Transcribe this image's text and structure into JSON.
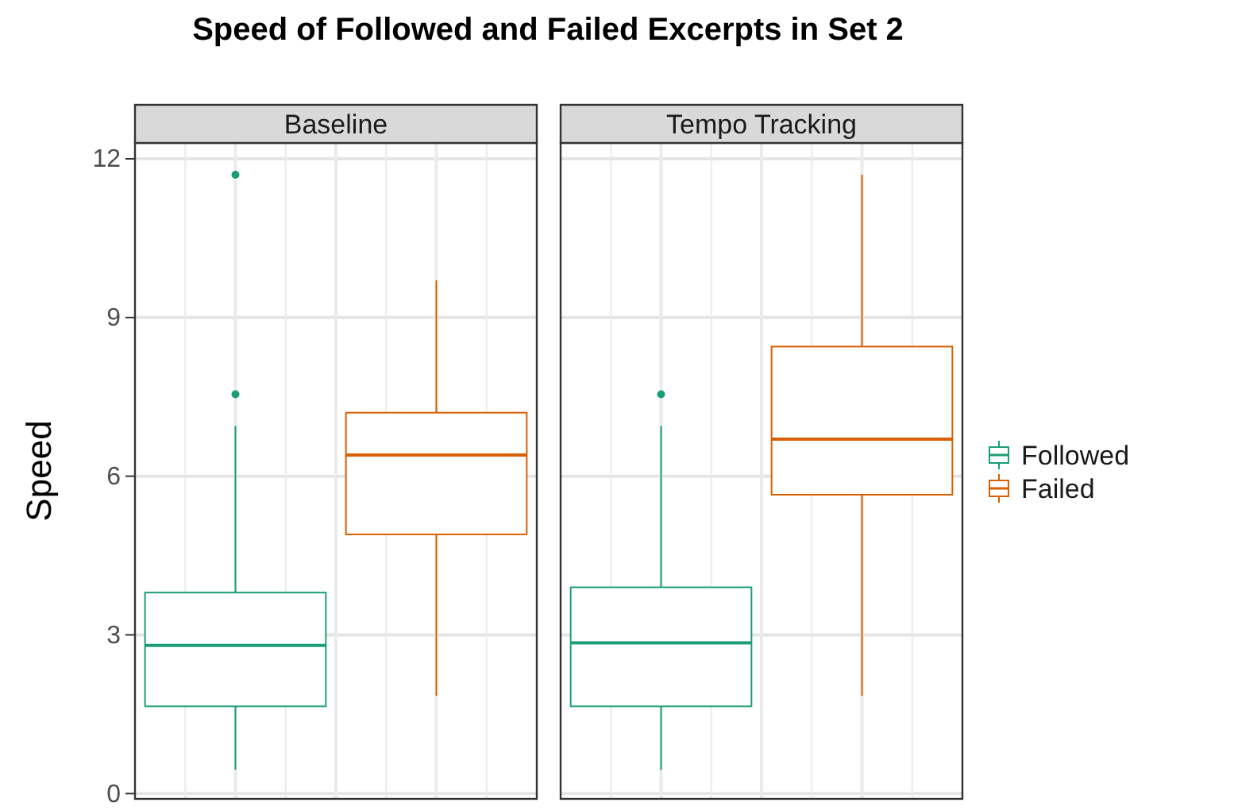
{
  "chart_data": {
    "type": "box",
    "title": "Speed of Followed and Failed Excerpts in Set 2",
    "ylabel": "Speed",
    "categories": [
      "Baseline",
      "Tempo Tracking"
    ],
    "ylim": [
      -0.1,
      12.3
    ],
    "yticks": [
      0,
      3,
      6,
      9,
      12
    ],
    "grid": true,
    "legend": "right",
    "series": [
      {
        "name": "Followed",
        "color": "#1b9e77",
        "boxes": [
          {
            "low": 0.45,
            "q1": 1.65,
            "median": 2.8,
            "q3": 3.8,
            "high": 6.95,
            "outliers": [
              7.55,
              11.7
            ]
          },
          {
            "low": 0.45,
            "q1": 1.65,
            "median": 2.85,
            "q3": 3.9,
            "high": 6.95,
            "outliers": [
              7.55
            ]
          }
        ]
      },
      {
        "name": "Failed",
        "color": "#d95f02",
        "boxes": [
          {
            "low": 1.85,
            "q1": 4.9,
            "median": 6.4,
            "q3": 7.2,
            "high": 9.7
          },
          {
            "low": 1.85,
            "q1": 5.65,
            "median": 6.7,
            "q3": 8.45,
            "high": 11.7
          }
        ]
      }
    ]
  }
}
